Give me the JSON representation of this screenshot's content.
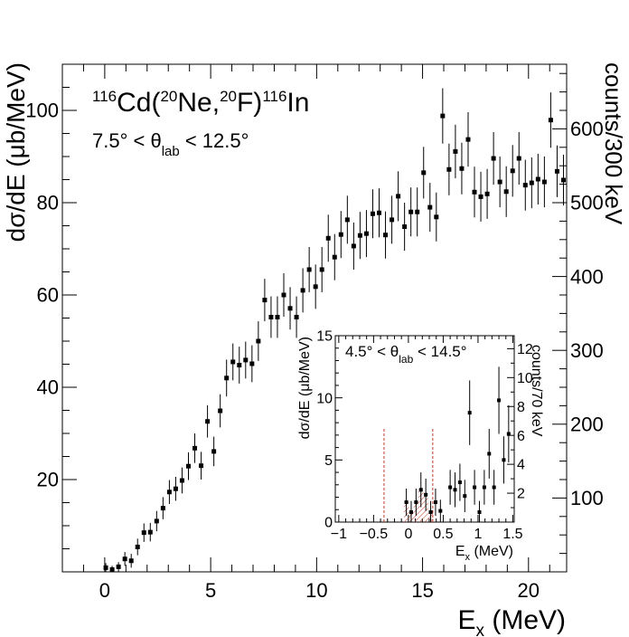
{
  "chart_data": [
    {
      "type": "scatter",
      "name": "main",
      "title": "",
      "reaction": {
        "a1": "116",
        "t1": "Cd(",
        "a2": "20",
        "t2": "Ne,",
        "a3": "20",
        "t3": "F)",
        "a4": "116",
        "t4": "In"
      },
      "angle": {
        "pre": "7.5° < θ",
        "sub": "lab",
        "post": " < 12.5°"
      },
      "xlabel": {
        "main": "E",
        "sub": "x",
        "rest": " (MeV)"
      },
      "ylabel": "dσ/dE (μb/MeV)",
      "y2label": "counts/300 keV",
      "xlim": [
        -2,
        21.8
      ],
      "ylim": [
        0,
        110
      ],
      "xticks": [
        0,
        5,
        10,
        15,
        20
      ],
      "yticks": [
        20,
        40,
        60,
        80,
        100
      ],
      "y2lim": [
        0,
        687.5
      ],
      "y2ticks": [
        100,
        200,
        300,
        400,
        500,
        600
      ],
      "series": [
        {
          "name": "data",
          "points": [
            {
              "x": 0.05,
              "y": 0.9,
              "err": 1.0
            },
            {
              "x": 0.35,
              "y": 0.5,
              "err": 0.8
            },
            {
              "x": 0.65,
              "y": 1.1,
              "err": 1.0
            },
            {
              "x": 0.95,
              "y": 2.8,
              "err": 1.5
            },
            {
              "x": 1.25,
              "y": 2.4,
              "err": 1.5
            },
            {
              "x": 1.55,
              "y": 5.4,
              "err": 1.8
            },
            {
              "x": 1.85,
              "y": 8.5,
              "err": 2.0
            },
            {
              "x": 2.15,
              "y": 8.6,
              "err": 2.0
            },
            {
              "x": 2.45,
              "y": 11.0,
              "err": 2.2
            },
            {
              "x": 2.75,
              "y": 13.8,
              "err": 2.4
            },
            {
              "x": 3.05,
              "y": 17.3,
              "err": 2.6
            },
            {
              "x": 3.35,
              "y": 18.0,
              "err": 2.6
            },
            {
              "x": 3.65,
              "y": 19.8,
              "err": 2.8
            },
            {
              "x": 3.95,
              "y": 22.9,
              "err": 3.0
            },
            {
              "x": 4.25,
              "y": 26.8,
              "err": 3.2
            },
            {
              "x": 4.55,
              "y": 23.0,
              "err": 3.0
            },
            {
              "x": 4.85,
              "y": 32.6,
              "err": 3.5
            },
            {
              "x": 5.15,
              "y": 26.1,
              "err": 3.2
            },
            {
              "x": 5.45,
              "y": 34.9,
              "err": 3.6
            },
            {
              "x": 5.75,
              "y": 42.0,
              "err": 4.0
            },
            {
              "x": 6.05,
              "y": 45.5,
              "err": 4.0
            },
            {
              "x": 6.35,
              "y": 44.8,
              "err": 4.0
            },
            {
              "x": 6.65,
              "y": 45.9,
              "err": 4.0
            },
            {
              "x": 6.95,
              "y": 45.1,
              "err": 4.0
            },
            {
              "x": 7.25,
              "y": 50.0,
              "err": 4.3
            },
            {
              "x": 7.55,
              "y": 58.9,
              "err": 4.6
            },
            {
              "x": 7.85,
              "y": 55.2,
              "err": 4.5
            },
            {
              "x": 8.15,
              "y": 55.2,
              "err": 4.5
            },
            {
              "x": 8.45,
              "y": 60.0,
              "err": 4.7
            },
            {
              "x": 8.75,
              "y": 57.1,
              "err": 4.6
            },
            {
              "x": 9.05,
              "y": 55.2,
              "err": 4.5
            },
            {
              "x": 9.35,
              "y": 61.0,
              "err": 4.8
            },
            {
              "x": 9.65,
              "y": 65.5,
              "err": 4.9
            },
            {
              "x": 9.95,
              "y": 61.8,
              "err": 4.8
            },
            {
              "x": 10.25,
              "y": 65.5,
              "err": 4.9
            },
            {
              "x": 10.55,
              "y": 72.3,
              "err": 5.1
            },
            {
              "x": 10.85,
              "y": 68.2,
              "err": 5.0
            },
            {
              "x": 11.15,
              "y": 73.1,
              "err": 5.1
            },
            {
              "x": 11.45,
              "y": 76.3,
              "err": 5.2
            },
            {
              "x": 11.75,
              "y": 70.6,
              "err": 5.1
            },
            {
              "x": 12.05,
              "y": 72.9,
              "err": 5.1
            },
            {
              "x": 12.35,
              "y": 73.3,
              "err": 5.1
            },
            {
              "x": 12.65,
              "y": 77.6,
              "err": 5.3
            },
            {
              "x": 12.95,
              "y": 77.8,
              "err": 5.3
            },
            {
              "x": 13.25,
              "y": 73.0,
              "err": 5.1
            },
            {
              "x": 13.55,
              "y": 76.3,
              "err": 5.2
            },
            {
              "x": 13.85,
              "y": 81.4,
              "err": 5.4
            },
            {
              "x": 14.15,
              "y": 74.8,
              "err": 5.2
            },
            {
              "x": 14.45,
              "y": 78.0,
              "err": 5.3
            },
            {
              "x": 14.75,
              "y": 78.0,
              "err": 5.3
            },
            {
              "x": 15.05,
              "y": 86.5,
              "err": 5.6
            },
            {
              "x": 15.35,
              "y": 79.0,
              "err": 5.3
            },
            {
              "x": 15.65,
              "y": 76.9,
              "err": 5.3
            },
            {
              "x": 15.95,
              "y": 98.8,
              "err": 6.0
            },
            {
              "x": 16.25,
              "y": 87.2,
              "err": 5.6
            },
            {
              "x": 16.55,
              "y": 91.1,
              "err": 5.8
            },
            {
              "x": 16.85,
              "y": 87.4,
              "err": 5.6
            },
            {
              "x": 17.15,
              "y": 93.7,
              "err": 5.9
            },
            {
              "x": 17.45,
              "y": 82.3,
              "err": 5.5
            },
            {
              "x": 17.75,
              "y": 81.3,
              "err": 5.4
            },
            {
              "x": 18.05,
              "y": 81.9,
              "err": 5.4
            },
            {
              "x": 18.35,
              "y": 89.6,
              "err": 5.7
            },
            {
              "x": 18.65,
              "y": 84.5,
              "err": 5.5
            },
            {
              "x": 18.95,
              "y": 82.4,
              "err": 5.5
            },
            {
              "x": 19.25,
              "y": 86.9,
              "err": 5.6
            },
            {
              "x": 19.55,
              "y": 89.6,
              "err": 5.7
            },
            {
              "x": 19.85,
              "y": 83.8,
              "err": 5.5
            },
            {
              "x": 20.15,
              "y": 84.3,
              "err": 5.5
            },
            {
              "x": 20.45,
              "y": 85.1,
              "err": 5.5
            },
            {
              "x": 20.75,
              "y": 84.5,
              "err": 5.5
            },
            {
              "x": 21.05,
              "y": 97.9,
              "err": 6.0
            },
            {
              "x": 21.35,
              "y": 86.8,
              "err": 5.6
            },
            {
              "x": 21.65,
              "y": 84.9,
              "err": 5.5
            }
          ]
        }
      ]
    },
    {
      "type": "scatter",
      "name": "inset",
      "angle": {
        "pre": "4.5° < θ",
        "sub": "lab",
        "post": " < 14.5°"
      },
      "xlabel": {
        "main": "E",
        "sub": "x",
        "rest": " (MeV)"
      },
      "ylabel": "dσ/dE (μb/MeV)",
      "y2label": "counts/70 keV",
      "xlim": [
        -1.05,
        1.52
      ],
      "ylim": [
        0,
        15
      ],
      "xticks": [
        -1,
        -0.5,
        0,
        0.5,
        1,
        1.5
      ],
      "xticklabels": [
        "−1",
        "−0.5",
        "0",
        "0.5",
        "1",
        "1.5"
      ],
      "yticks": [
        0,
        5,
        10,
        15
      ],
      "y2lim": [
        0,
        12.9
      ],
      "y2ticks": [
        2,
        4,
        6,
        8,
        10,
        12
      ],
      "dashed_lines_x": [
        -0.35,
        0.35
      ],
      "dashed_lines_top": 7.5,
      "series": [
        {
          "name": "data",
          "points": [
            {
              "x": -0.03,
              "y": 1.6,
              "err": 1.1
            },
            {
              "x": 0.04,
              "y": 0.8,
              "err": 0.9
            },
            {
              "x": 0.11,
              "y": 1.6,
              "err": 1.1
            },
            {
              "x": 0.18,
              "y": 2.6,
              "err": 1.4
            },
            {
              "x": 0.25,
              "y": 2.2,
              "err": 1.3
            },
            {
              "x": 0.32,
              "y": 0.8,
              "err": 0.9
            },
            {
              "x": 0.39,
              "y": 1.6,
              "err": 1.1
            },
            {
              "x": 0.46,
              "y": 0.9,
              "err": 0.9
            },
            {
              "x": 0.6,
              "y": 2.8,
              "err": 1.4
            },
            {
              "x": 0.67,
              "y": 2.6,
              "err": 1.4
            },
            {
              "x": 0.74,
              "y": 3.2,
              "err": 1.5
            },
            {
              "x": 0.81,
              "y": 2.1,
              "err": 1.3
            },
            {
              "x": 0.88,
              "y": 8.8,
              "err": 2.6
            },
            {
              "x": 0.95,
              "y": 2.8,
              "err": 1.4
            },
            {
              "x": 1.02,
              "y": 0.8,
              "err": 0.9
            },
            {
              "x": 1.09,
              "y": 2.8,
              "err": 1.4
            },
            {
              "x": 1.16,
              "y": 5.5,
              "err": 2.0
            },
            {
              "x": 1.23,
              "y": 2.8,
              "err": 1.4
            },
            {
              "x": 1.3,
              "y": 9.8,
              "err": 2.7
            },
            {
              "x": 1.37,
              "y": 5.0,
              "err": 1.9
            },
            {
              "x": 1.44,
              "y": 7.1,
              "err": 2.3
            }
          ]
        }
      ],
      "hatched_bins": [
        {
          "x": -0.03,
          "y": 1.6
        },
        {
          "x": 0.04,
          "y": 0.8
        },
        {
          "x": 0.11,
          "y": 1.6
        },
        {
          "x": 0.18,
          "y": 2.6
        },
        {
          "x": 0.25,
          "y": 2.2
        },
        {
          "x": 0.32,
          "y": 0.8
        }
      ],
      "hatched_bin_width": 0.07
    }
  ]
}
